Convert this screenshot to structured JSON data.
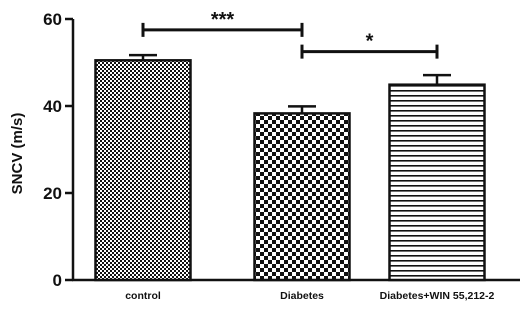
{
  "chart_data": {
    "type": "bar",
    "categories": [
      "control",
      "Diabetes",
      "Diabetes+WIN 55,212-2"
    ],
    "values": [
      50.5,
      38.3,
      44.9
    ],
    "errors": [
      1.2,
      1.6,
      2.2
    ],
    "patterns": [
      "fine-checker",
      "coarse-checker",
      "horizontal-stripes"
    ],
    "ylabel": "SNCV (m/s)",
    "xlabel": "",
    "ylim": [
      0,
      60
    ],
    "yticks": [
      0,
      20,
      40,
      60
    ],
    "grid": false,
    "colors": {
      "bar_fill_dark": "#111111",
      "bar_fill_light": "#ffffff",
      "axis": "#111111"
    },
    "significance": [
      {
        "from": 0,
        "to": 1,
        "label": "***",
        "y": 57.5
      },
      {
        "from": 1,
        "to": 2,
        "label": "*",
        "y": 52.5
      }
    ]
  }
}
